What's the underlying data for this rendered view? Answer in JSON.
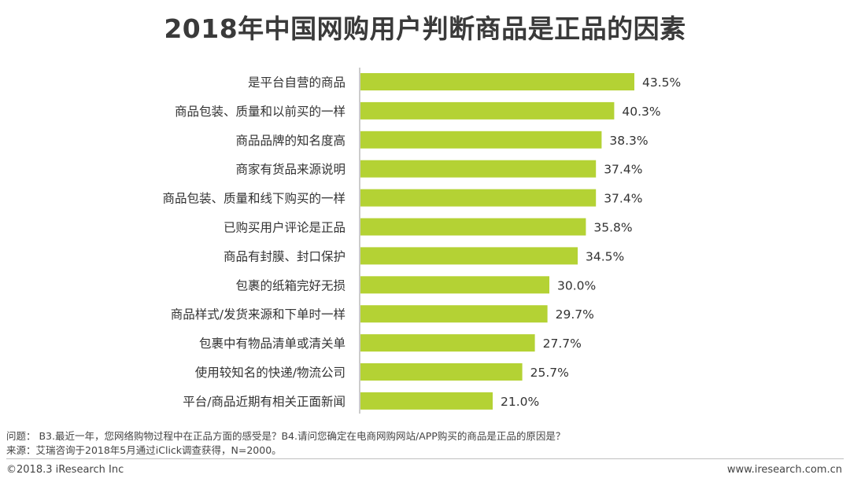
{
  "chart_data": {
    "type": "bar",
    "orientation": "horizontal",
    "title": "2018年中国网购用户判断商品是正品的因素",
    "categories": [
      "是平台自营的商品",
      "商品包装、质量和以前买的一样",
      "商品品牌的知名度高",
      "商家有货品来源说明",
      "商品包装、质量和线下购买的一样",
      "已购买用户评论是正品",
      "商品有封膜、封口保护",
      "包裹的纸箱完好无损",
      "商品样式/发货来源和下单时一样",
      "包裹中有物品清单或清关单",
      "使用较知名的快递/物流公司",
      "平台/商品近期有相关正面新闻"
    ],
    "values": [
      43.5,
      40.3,
      38.3,
      37.4,
      37.4,
      35.8,
      34.5,
      30.0,
      29.7,
      27.7,
      25.7,
      21.0
    ],
    "value_labels": [
      "43.5%",
      "40.3%",
      "38.3%",
      "37.4%",
      "37.4%",
      "35.8%",
      "34.5%",
      "30.0%",
      "29.7%",
      "27.7%",
      "25.7%",
      "21.0%"
    ],
    "bar_color": "#b4d234",
    "axis_color": "#999999",
    "xlim": [
      0,
      50
    ],
    "grid": false,
    "legend": "none"
  },
  "notes": {
    "question": "问题：  B3.最近一年，您网络购物过程中在正品方面的感受是？B4.请问您确定在电商网购网站/APP购买的商品是正品的原因是？",
    "source": "来源：艾瑞咨询于2018年5月通过iClick调查获得，N=2000。"
  },
  "footer": {
    "copyright": "©2018.3 iResearch Inc",
    "website": "www.iresearch.com.cn"
  }
}
